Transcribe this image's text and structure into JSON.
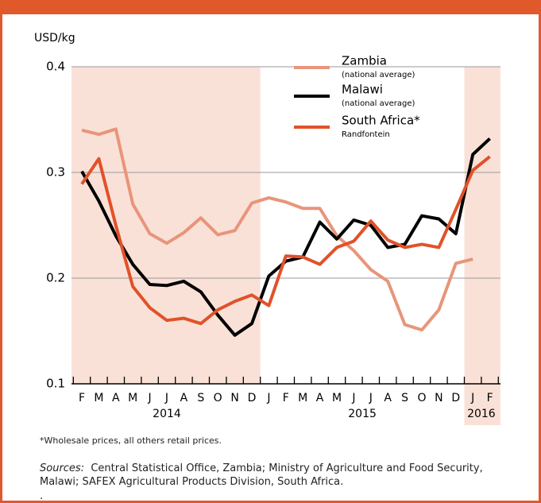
{
  "chart_data": {
    "type": "line",
    "y_label": "USD/kg",
    "categories": [
      "F",
      "M",
      "A",
      "M",
      "J",
      "J",
      "A",
      "S",
      "O",
      "N",
      "D",
      "J",
      "F",
      "M",
      "A",
      "M",
      "J",
      "J",
      "A",
      "S",
      "O",
      "N",
      "D",
      "J",
      "F"
    ],
    "years": [
      "2014",
      "2015",
      "2016"
    ],
    "ylim": [
      0.1,
      0.4
    ],
    "yticks": [
      0.1,
      0.2,
      0.3,
      0.4
    ],
    "grid": true,
    "series": [
      {
        "name": "Zambia",
        "note": "(national average)",
        "color": "#e8957a",
        "values": [
          0.34,
          0.336,
          0.341,
          0.27,
          0.242,
          0.233,
          0.243,
          0.257,
          0.241,
          0.245,
          0.271,
          0.276,
          0.272,
          0.266,
          0.266,
          0.24,
          0.226,
          0.208,
          0.197,
          0.156,
          0.151,
          0.17,
          0.214,
          0.218,
          null
        ]
      },
      {
        "name": "Malawi",
        "note": "(national average)",
        "color": "#000000",
        "values": [
          0.301,
          0.273,
          0.24,
          0.213,
          0.194,
          0.193,
          0.197,
          0.187,
          0.165,
          0.146,
          0.157,
          0.202,
          0.216,
          0.22,
          0.253,
          0.237,
          0.255,
          0.25,
          0.229,
          0.232,
          0.259,
          0.256,
          0.242,
          0.317,
          0.332
        ]
      },
      {
        "name": "South Africa*",
        "note": "Randfontein",
        "color": "#e0522a",
        "values": [
          0.289,
          0.313,
          0.25,
          0.192,
          0.172,
          0.16,
          0.162,
          0.157,
          0.17,
          0.178,
          0.184,
          0.174,
          0.221,
          0.22,
          0.213,
          0.229,
          0.235,
          0.254,
          0.236,
          0.229,
          0.232,
          0.229,
          0.265,
          0.302,
          0.315
        ]
      }
    ],
    "footnote": "*Wholesale prices, all others retail prices.",
    "sources_label": "Sources:",
    "sources": "Central Statistical Office, Zambia; Ministry of Agriculture and Food Security, Malawi; SAFEX Agricultural Products Division, South Africa.",
    "end_mark": "."
  }
}
